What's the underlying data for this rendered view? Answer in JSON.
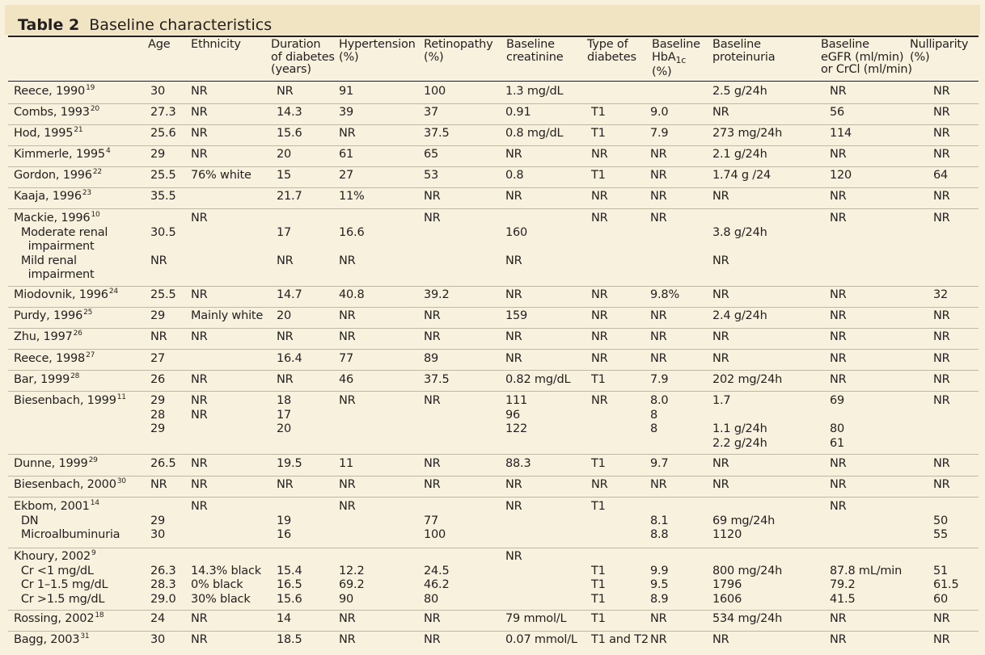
{
  "title": {
    "label": "Table 2",
    "text": "Baseline characteristics"
  },
  "headers": [
    {
      "key": "age",
      "lines": [
        "Age"
      ]
    },
    {
      "key": "ethnicity",
      "lines": [
        "Ethnicity"
      ]
    },
    {
      "key": "duration",
      "lines": [
        "Duration",
        "of diabetes",
        "(years)"
      ]
    },
    {
      "key": "hypertension",
      "lines": [
        "Hypertension",
        "(%)"
      ]
    },
    {
      "key": "retinopathy",
      "lines": [
        "Retinopathy",
        "(%)"
      ]
    },
    {
      "key": "creatinine",
      "lines": [
        "Baseline",
        "creatinine"
      ]
    },
    {
      "key": "type",
      "lines": [
        "Type of",
        "diabetes"
      ]
    },
    {
      "key": "hba1c",
      "lines": [
        "Baseline",
        "HbA",
        "(%)"
      ],
      "subscript": "1c"
    },
    {
      "key": "proteinuria",
      "lines": [
        "Baseline",
        "proteinuria"
      ]
    },
    {
      "key": "egfr",
      "lines": [
        "Baseline",
        "eGFR (ml/min)",
        "or CrCl (ml/min)"
      ]
    },
    {
      "key": "nulliparity",
      "lines": [
        "Nulliparity",
        "(%)"
      ]
    }
  ],
  "rows": [
    {
      "study": [
        "Reece, 1990"
      ],
      "ref": "19",
      "age": [
        "30"
      ],
      "ethnicity": [
        "NR"
      ],
      "duration": [
        "NR"
      ],
      "hypertension": [
        "91"
      ],
      "retinopathy": [
        "100"
      ],
      "creatinine": [
        "1.3 mg/dL"
      ],
      "type": [
        ""
      ],
      "hba1c": [
        ""
      ],
      "proteinuria": [
        "2.5 g/24h"
      ],
      "egfr": [
        "NR"
      ],
      "nulliparity": [
        "NR"
      ]
    },
    {
      "study": [
        "Combs, 1993"
      ],
      "ref": "20",
      "age": [
        "27.3"
      ],
      "ethnicity": [
        "NR"
      ],
      "duration": [
        "14.3"
      ],
      "hypertension": [
        "39"
      ],
      "retinopathy": [
        "37"
      ],
      "creatinine": [
        "0.91"
      ],
      "type": [
        "T1"
      ],
      "hba1c": [
        "9.0"
      ],
      "proteinuria": [
        "NR"
      ],
      "egfr": [
        "56"
      ],
      "nulliparity": [
        "NR"
      ]
    },
    {
      "study": [
        "Hod, 1995"
      ],
      "ref": "21",
      "age": [
        "25.6"
      ],
      "ethnicity": [
        "NR"
      ],
      "duration": [
        "15.6"
      ],
      "hypertension": [
        "NR"
      ],
      "retinopathy": [
        "37.5"
      ],
      "creatinine": [
        "0.8 mg/dL"
      ],
      "type": [
        "T1"
      ],
      "hba1c": [
        "7.9"
      ],
      "proteinuria": [
        "273 mg/24h"
      ],
      "egfr": [
        "114"
      ],
      "nulliparity": [
        "NR"
      ]
    },
    {
      "study": [
        "Kimmerle, 1995"
      ],
      "ref": "4",
      "age": [
        "29"
      ],
      "ethnicity": [
        "NR"
      ],
      "duration": [
        "20"
      ],
      "hypertension": [
        "61"
      ],
      "retinopathy": [
        "65"
      ],
      "creatinine": [
        "NR"
      ],
      "type": [
        "NR"
      ],
      "hba1c": [
        "NR"
      ],
      "proteinuria": [
        "2.1 g/24h"
      ],
      "egfr": [
        "NR"
      ],
      "nulliparity": [
        "NR"
      ]
    },
    {
      "study": [
        "Gordon, 1996"
      ],
      "ref": "22",
      "age": [
        "25.5"
      ],
      "ethnicity": [
        "76% white"
      ],
      "duration": [
        "15"
      ],
      "hypertension": [
        "27"
      ],
      "retinopathy": [
        "53"
      ],
      "creatinine": [
        "0.8"
      ],
      "type": [
        "T1"
      ],
      "hba1c": [
        "NR"
      ],
      "proteinuria": [
        "1.74 g /24"
      ],
      "egfr": [
        "120"
      ],
      "nulliparity": [
        "64"
      ]
    },
    {
      "study": [
        "Kaaja, 1996"
      ],
      "ref": "23",
      "age": [
        "35.5"
      ],
      "ethnicity": [
        ""
      ],
      "duration": [
        "21.7"
      ],
      "hypertension": [
        "11%"
      ],
      "retinopathy": [
        "NR"
      ],
      "creatinine": [
        "NR"
      ],
      "type": [
        "NR"
      ],
      "hba1c": [
        "NR"
      ],
      "proteinuria": [
        "NR"
      ],
      "egfr": [
        "NR"
      ],
      "nulliparity": [
        "NR"
      ]
    },
    {
      "study": [
        "Mackie, 1996",
        "  Moderate renal",
        "    impairment",
        "  Mild renal",
        "    impairment"
      ],
      "ref": "10",
      "age": [
        "",
        "30.5",
        "",
        "NR",
        ""
      ],
      "ethnicity": [
        "NR"
      ],
      "duration": [
        "",
        "17",
        "",
        "NR",
        ""
      ],
      "hypertension": [
        "",
        "16.6",
        "",
        "NR",
        ""
      ],
      "retinopathy": [
        "NR"
      ],
      "creatinine": [
        "",
        "160",
        "",
        "NR",
        ""
      ],
      "type": [
        "NR"
      ],
      "hba1c": [
        "NR"
      ],
      "proteinuria": [
        "",
        "3.8 g/24h",
        "",
        "NR",
        ""
      ],
      "egfr": [
        "NR"
      ],
      "nulliparity": [
        "NR"
      ]
    },
    {
      "study": [
        "Miodovnik, 1996"
      ],
      "ref": "24",
      "age": [
        "25.5"
      ],
      "ethnicity": [
        "NR"
      ],
      "duration": [
        "14.7"
      ],
      "hypertension": [
        "40.8"
      ],
      "retinopathy": [
        "39.2"
      ],
      "creatinine": [
        "NR"
      ],
      "type": [
        "NR"
      ],
      "hba1c": [
        "9.8%"
      ],
      "proteinuria": [
        "NR"
      ],
      "egfr": [
        "NR"
      ],
      "nulliparity": [
        "32"
      ]
    },
    {
      "study": [
        "Purdy, 1996"
      ],
      "ref": "25",
      "age": [
        "29"
      ],
      "ethnicity": [
        "Mainly white"
      ],
      "duration": [
        "20"
      ],
      "hypertension": [
        "NR"
      ],
      "retinopathy": [
        "NR"
      ],
      "creatinine": [
        "159"
      ],
      "type": [
        "NR"
      ],
      "hba1c": [
        "NR"
      ],
      "proteinuria": [
        "2.4 g/24h"
      ],
      "egfr": [
        "NR"
      ],
      "nulliparity": [
        "NR"
      ]
    },
    {
      "study": [
        "Zhu, 1997"
      ],
      "ref": "26",
      "age": [
        "NR"
      ],
      "ethnicity": [
        "NR"
      ],
      "duration": [
        "NR"
      ],
      "hypertension": [
        "NR"
      ],
      "retinopathy": [
        "NR"
      ],
      "creatinine": [
        "NR"
      ],
      "type": [
        "NR"
      ],
      "hba1c": [
        "NR"
      ],
      "proteinuria": [
        "NR"
      ],
      "egfr": [
        "NR"
      ],
      "nulliparity": [
        "NR"
      ]
    },
    {
      "study": [
        "Reece, 1998"
      ],
      "ref": "27",
      "age": [
        "27"
      ],
      "ethnicity": [
        ""
      ],
      "duration": [
        "16.4"
      ],
      "hypertension": [
        "77"
      ],
      "retinopathy": [
        "89"
      ],
      "creatinine": [
        "NR"
      ],
      "type": [
        "NR"
      ],
      "hba1c": [
        "NR"
      ],
      "proteinuria": [
        "NR"
      ],
      "egfr": [
        "NR"
      ],
      "nulliparity": [
        "NR"
      ]
    },
    {
      "study": [
        "Bar, 1999"
      ],
      "ref": "28",
      "age": [
        "26"
      ],
      "ethnicity": [
        "NR"
      ],
      "duration": [
        "NR"
      ],
      "hypertension": [
        "46"
      ],
      "retinopathy": [
        "37.5"
      ],
      "creatinine": [
        "0.82 mg/dL"
      ],
      "type": [
        "T1"
      ],
      "hba1c": [
        "7.9"
      ],
      "proteinuria": [
        "202 mg/24h"
      ],
      "egfr": [
        "NR"
      ],
      "nulliparity": [
        "NR"
      ]
    },
    {
      "study": [
        "Biesenbach, 1999"
      ],
      "ref": "11",
      "age": [
        "29",
        "28",
        "29",
        ""
      ],
      "ethnicity": [
        "NR",
        "NR"
      ],
      "duration": [
        "18",
        "17",
        "20"
      ],
      "hypertension": [
        "NR"
      ],
      "retinopathy": [
        "NR"
      ],
      "creatinine": [
        "111",
        "96",
        "122"
      ],
      "type": [
        "NR"
      ],
      "hba1c": [
        "8.0",
        "8",
        "8"
      ],
      "proteinuria": [
        "1.7",
        "",
        "1.1 g/24h",
        "2.2 g/24h"
      ],
      "egfr": [
        "69",
        "",
        "80",
        "61"
      ],
      "nulliparity": [
        "NR"
      ]
    },
    {
      "study": [
        "Dunne, 1999"
      ],
      "ref": "29",
      "age": [
        "26.5"
      ],
      "ethnicity": [
        "NR"
      ],
      "duration": [
        "19.5"
      ],
      "hypertension": [
        "11"
      ],
      "retinopathy": [
        "NR"
      ],
      "creatinine": [
        "88.3"
      ],
      "type": [
        "T1"
      ],
      "hba1c": [
        "9.7"
      ],
      "proteinuria": [
        "NR"
      ],
      "egfr": [
        "NR"
      ],
      "nulliparity": [
        "NR"
      ]
    },
    {
      "study": [
        "Biesenbach, 2000"
      ],
      "ref": "30",
      "age": [
        "NR"
      ],
      "ethnicity": [
        "NR"
      ],
      "duration": [
        "NR"
      ],
      "hypertension": [
        "NR"
      ],
      "retinopathy": [
        "NR"
      ],
      "creatinine": [
        "NR"
      ],
      "type": [
        "NR"
      ],
      "hba1c": [
        "NR"
      ],
      "proteinuria": [
        "NR"
      ],
      "egfr": [
        "NR"
      ],
      "nulliparity": [
        "NR"
      ]
    },
    {
      "study": [
        "Ekbom, 2001",
        "  DN",
        "  Microalbuminuria"
      ],
      "ref": "14",
      "age": [
        "",
        "29",
        "30"
      ],
      "ethnicity": [
        "NR"
      ],
      "duration": [
        "",
        "19",
        "16"
      ],
      "hypertension": [
        "NR"
      ],
      "retinopathy": [
        "",
        "77",
        "100"
      ],
      "creatinine": [
        "NR"
      ],
      "type": [
        "T1"
      ],
      "hba1c": [
        "",
        "8.1",
        "8.8"
      ],
      "proteinuria": [
        "",
        "69 mg/24h",
        "1120"
      ],
      "egfr": [
        "NR"
      ],
      "nulliparity": [
        "",
        "50",
        "55"
      ]
    },
    {
      "study": [
        "Khoury, 2002",
        "  Cr <1 mg/dL",
        "  Cr 1–1.5 mg/dL",
        "  Cr >1.5 mg/dL"
      ],
      "ref": "9",
      "age": [
        "",
        "26.3",
        "28.3",
        "29.0"
      ],
      "ethnicity": [
        "",
        "14.3% black",
        "0% black",
        "30% black"
      ],
      "duration": [
        "",
        "15.4",
        "16.5",
        "15.6"
      ],
      "hypertension": [
        "",
        "12.2",
        "69.2",
        "90"
      ],
      "retinopathy": [
        "",
        "24.5",
        "46.2",
        "80"
      ],
      "creatinine": [
        "NR"
      ],
      "type": [
        "",
        "T1",
        "T1",
        "T1"
      ],
      "hba1c": [
        "",
        "9.9",
        "9.5",
        "8.9"
      ],
      "proteinuria": [
        "",
        "800 mg/24h",
        "1796",
        "1606"
      ],
      "egfr": [
        "",
        "87.8 mL/min",
        "79.2",
        "41.5"
      ],
      "nulliparity": [
        "",
        "51",
        "61.5",
        "60"
      ]
    },
    {
      "study": [
        "Rossing, 2002"
      ],
      "ref": "18",
      "age": [
        "24"
      ],
      "ethnicity": [
        "NR"
      ],
      "duration": [
        "14"
      ],
      "hypertension": [
        "NR"
      ],
      "retinopathy": [
        "NR"
      ],
      "creatinine": [
        "79 mmol/L"
      ],
      "type": [
        "T1"
      ],
      "hba1c": [
        "NR"
      ],
      "proteinuria": [
        "534 mg/24h"
      ],
      "egfr": [
        "NR"
      ],
      "nulliparity": [
        "NR"
      ]
    },
    {
      "study": [
        "Bagg, 2003"
      ],
      "ref": "31",
      "age": [
        "30"
      ],
      "ethnicity": [
        "NR"
      ],
      "duration": [
        "18.5"
      ],
      "hypertension": [
        "NR"
      ],
      "retinopathy": [
        "NR"
      ],
      "creatinine": [
        "0.07 mmol/L"
      ],
      "type": [
        "T1 and T2"
      ],
      "hba1c": [
        "NR"
      ],
      "proteinuria": [
        "NR"
      ],
      "egfr": [
        "NR"
      ],
      "nulliparity": [
        "NR"
      ]
    }
  ]
}
